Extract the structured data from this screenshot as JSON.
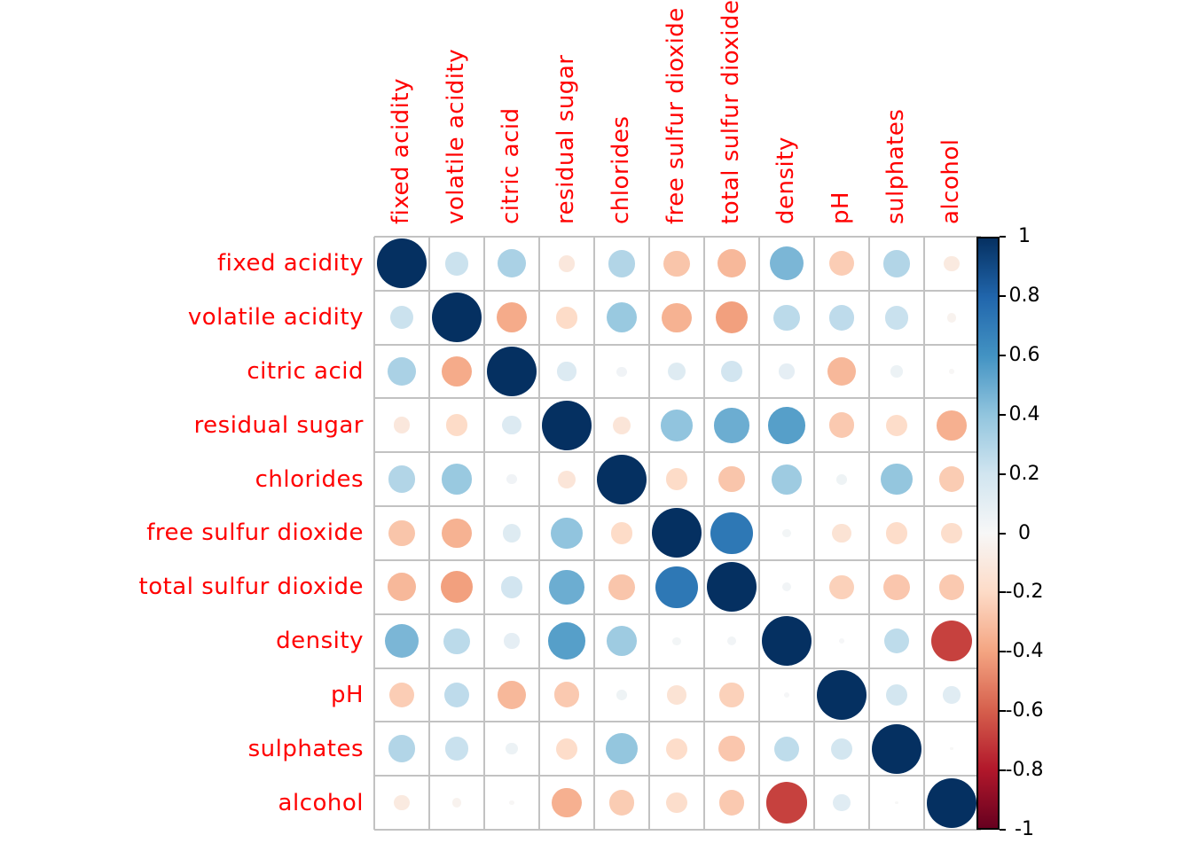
{
  "figure": {
    "background_color": "#ffffff",
    "variable_label_color": "#ff0000",
    "grid_line_color": "#c2c2c2",
    "colorbar_border_color": "#000000",
    "tick_label_color": "#000000"
  },
  "chart_data": {
    "type": "heatmap",
    "subtype": "correlogram-circles",
    "title": "",
    "xlabel": "",
    "ylabel": "",
    "grid": true,
    "legend_position": "right",
    "value_range": [
      -1,
      1
    ],
    "circle_rule": "circle area proportional to |correlation|, color from blue (+1) through white (0) to red (-1)",
    "variables": [
      "fixed acidity",
      "volatile acidity",
      "citric acid",
      "residual sugar",
      "chlorides",
      "free sulfur dioxide",
      "total sulfur dioxide",
      "density",
      "pH",
      "sulphates",
      "alcohol"
    ],
    "matrix": [
      [
        1,
        0.219,
        0.324,
        -0.112,
        0.298,
        -0.283,
        -0.329,
        0.459,
        -0.252,
        0.299,
        -0.095
      ],
      [
        0.219,
        1,
        -0.378,
        -0.196,
        0.377,
        -0.353,
        -0.414,
        0.271,
        0.261,
        0.226,
        -0.038
      ],
      [
        0.324,
        -0.378,
        1,
        0.142,
        0.039,
        0.133,
        0.195,
        0.096,
        -0.33,
        0.056,
        -0.01
      ],
      [
        -0.112,
        -0.196,
        0.142,
        1,
        -0.129,
        0.403,
        0.495,
        0.552,
        -0.267,
        -0.186,
        -0.359
      ],
      [
        0.298,
        0.377,
        0.039,
        -0.129,
        1,
        -0.195,
        -0.28,
        0.363,
        0.045,
        0.395,
        -0.257
      ],
      [
        -0.283,
        -0.353,
        0.133,
        0.403,
        -0.195,
        1,
        0.721,
        0.026,
        -0.146,
        -0.188,
        -0.18
      ],
      [
        -0.329,
        -0.414,
        0.195,
        0.495,
        -0.28,
        0.721,
        1,
        0.032,
        -0.238,
        -0.276,
        -0.266
      ],
      [
        0.459,
        0.271,
        0.096,
        0.552,
        0.363,
        0.026,
        0.032,
        1,
        0.012,
        0.259,
        -0.687
      ],
      [
        -0.252,
        0.261,
        -0.33,
        -0.267,
        0.045,
        -0.146,
        -0.238,
        0.012,
        1,
        0.192,
        0.121
      ],
      [
        0.299,
        0.226,
        0.056,
        -0.186,
        0.395,
        -0.188,
        -0.276,
        0.259,
        0.192,
        1,
        -0.003
      ],
      [
        -0.095,
        -0.038,
        -0.01,
        -0.359,
        -0.257,
        -0.18,
        -0.266,
        -0.687,
        0.121,
        -0.003,
        1
      ]
    ],
    "colorbar_tick_labels": [
      "1",
      "0.8",
      "0.6",
      "0.4",
      "0.2",
      "0",
      "-0.2",
      "-0.4",
      "-0.6",
      "-0.8",
      "-1"
    ],
    "palette_pos_to_neg": [
      "#053061",
      "#2166AC",
      "#4393C3",
      "#92C5DE",
      "#D1E5F0",
      "#F7F7F7",
      "#FDDBC7",
      "#F4A582",
      "#D6604D",
      "#B2182B",
      "#67001F"
    ]
  }
}
